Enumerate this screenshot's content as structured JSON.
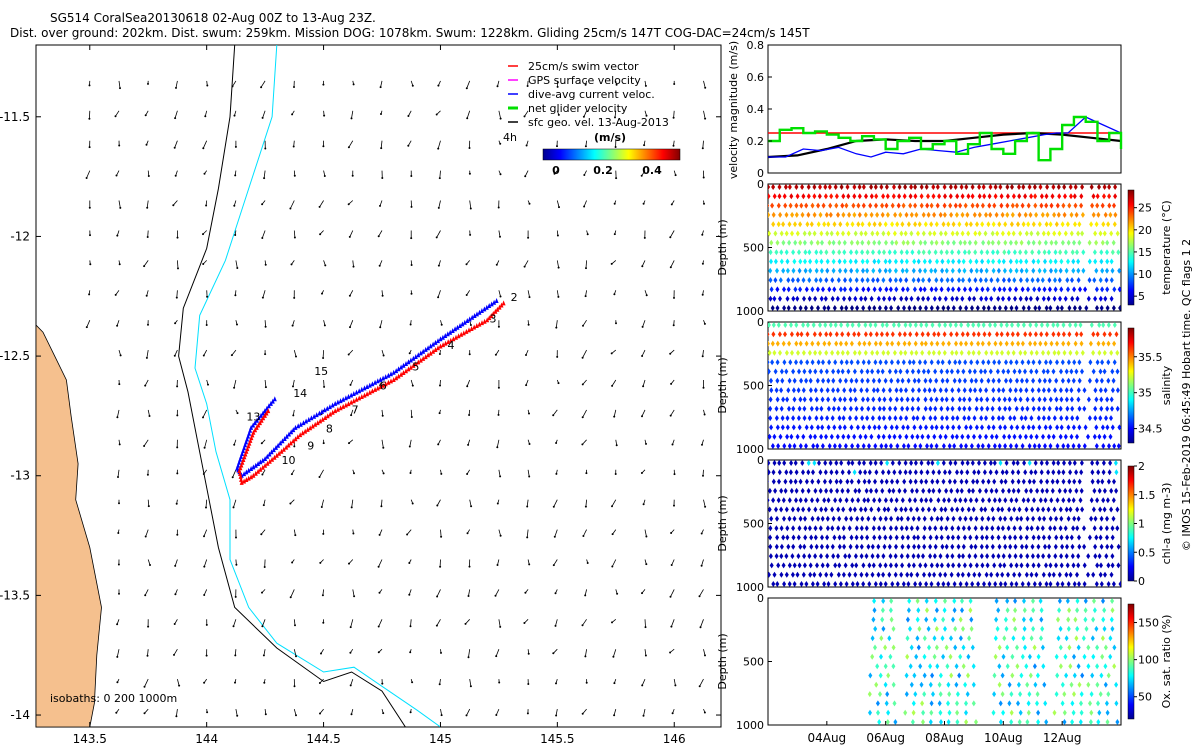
{
  "header": {
    "line1": "SG514 CoralSea20130618 02-Aug 00Z to 13-Aug 23Z.",
    "line2": "Dist. over ground: 202km. Dist. swum: 259km. Mission DOG: 1078km. Swum: 1228km. Gliding 25cm/s 147T COG-DAC=24cm/s 145T"
  },
  "side_note": "© IMOS 15-Feb-2019 06:45:49 Hobart time. QC flags 1  2",
  "colors": {
    "land": "#f5c08e",
    "swim": "#ff0000",
    "gps": "#ff00ff",
    "dac": "#0000ff",
    "net": "#00e000",
    "geo": "#000000",
    "iso1": "#00e0ff",
    "iso2": "#000000"
  },
  "chart_data": [
    {
      "id": "map",
      "type": "scatter",
      "title": "",
      "xlim": [
        143.27,
        146.2
      ],
      "ylim": [
        -14.05,
        -11.2
      ],
      "xticks": [
        143.5,
        144,
        144.5,
        145,
        145.5,
        146
      ],
      "xtick_labels": [
        "143.5",
        "144",
        "144.5",
        "145",
        "145.5",
        "146"
      ],
      "yticks": [
        -11.5,
        -12,
        -12.5,
        -13,
        -13.5,
        -14
      ],
      "ytick_labels": [
        "-11.5",
        "-12",
        "-12.5",
        "-13",
        "-13.5",
        "-14"
      ],
      "legend": {
        "entries": [
          "25cm/s swim vector",
          "GPS surface velocity",
          "dive-avg current veloc.",
          "net glider velocity",
          "sfc geo. vel. 13-Aug-2013"
        ],
        "extra": "4h"
      },
      "colorbar": {
        "label": "(m/s)",
        "ticks": [
          "0",
          "0.2",
          "0.4"
        ],
        "range": [
          0,
          0.5
        ]
      },
      "track": [
        {
          "lon": 145.27,
          "lat": -12.28
        },
        {
          "lon": 145.2,
          "lat": -12.35
        },
        {
          "lon": 145.0,
          "lat": -12.46
        },
        {
          "lon": 144.8,
          "lat": -12.6
        },
        {
          "lon": 144.55,
          "lat": -12.73
        },
        {
          "lon": 144.4,
          "lat": -12.83
        },
        {
          "lon": 144.32,
          "lat": -12.9
        },
        {
          "lon": 144.2,
          "lat": -13.0
        },
        {
          "lon": 144.15,
          "lat": -13.03
        },
        {
          "lon": 144.14,
          "lat": -12.98
        },
        {
          "lon": 144.2,
          "lat": -12.82
        },
        {
          "lon": 144.27,
          "lat": -12.72
        }
      ],
      "track_blue": [
        {
          "lon": 145.24,
          "lat": -12.27
        },
        {
          "lon": 145.0,
          "lat": -12.43
        },
        {
          "lon": 144.8,
          "lat": -12.57
        },
        {
          "lon": 144.55,
          "lat": -12.7
        },
        {
          "lon": 144.38,
          "lat": -12.8
        },
        {
          "lon": 144.25,
          "lat": -12.93
        },
        {
          "lon": 144.15,
          "lat": -13.0
        },
        {
          "lon": 144.13,
          "lat": -12.97
        },
        {
          "lon": 144.19,
          "lat": -12.8
        },
        {
          "lon": 144.3,
          "lat": -12.67
        }
      ],
      "day_labels": [
        {
          "t": "2",
          "lon": 145.3,
          "lat": -12.27
        },
        {
          "t": "3",
          "lon": 145.21,
          "lat": -12.36
        },
        {
          "t": "4",
          "lon": 145.03,
          "lat": -12.47
        },
        {
          "t": "5",
          "lon": 144.88,
          "lat": -12.56
        },
        {
          "t": "6",
          "lon": 144.74,
          "lat": -12.64
        },
        {
          "t": "7",
          "lon": 144.62,
          "lat": -12.74
        },
        {
          "t": "8",
          "lon": 144.51,
          "lat": -12.82
        },
        {
          "t": "9",
          "lon": 144.43,
          "lat": -12.89
        },
        {
          "t": "10",
          "lon": 144.32,
          "lat": -12.95
        },
        {
          "t": "13",
          "lon": 144.17,
          "lat": -12.77
        },
        {
          "t": "14",
          "lon": 144.37,
          "lat": -12.67
        },
        {
          "t": "15",
          "lon": 144.46,
          "lat": -12.58
        }
      ],
      "isobath_label": "isobaths: 0   200  1000m",
      "isobath_cyan": [
        {
          "lon": 144.3,
          "lat": -11.2
        },
        {
          "lon": 144.28,
          "lat": -11.5
        },
        {
          "lon": 144.18,
          "lat": -11.8
        },
        {
          "lon": 144.08,
          "lat": -12.1
        },
        {
          "lon": 143.97,
          "lat": -12.33
        },
        {
          "lon": 143.95,
          "lat": -12.55
        },
        {
          "lon": 144.0,
          "lat": -12.7
        },
        {
          "lon": 144.04,
          "lat": -12.9
        },
        {
          "lon": 144.1,
          "lat": -13.1
        },
        {
          "lon": 144.1,
          "lat": -13.35
        },
        {
          "lon": 144.18,
          "lat": -13.55
        },
        {
          "lon": 144.3,
          "lat": -13.7
        },
        {
          "lon": 144.5,
          "lat": -13.82
        },
        {
          "lon": 144.63,
          "lat": -13.8
        },
        {
          "lon": 144.75,
          "lat": -13.88
        },
        {
          "lon": 144.9,
          "lat": -13.98
        },
        {
          "lon": 145.0,
          "lat": -14.05
        }
      ],
      "isobath_black": [
        {
          "lon": 144.12,
          "lat": -11.2
        },
        {
          "lon": 144.1,
          "lat": -11.5
        },
        {
          "lon": 144.05,
          "lat": -11.8
        },
        {
          "lon": 144.0,
          "lat": -12.05
        },
        {
          "lon": 143.9,
          "lat": -12.3
        },
        {
          "lon": 143.88,
          "lat": -12.5
        },
        {
          "lon": 143.92,
          "lat": -12.65
        },
        {
          "lon": 143.96,
          "lat": -12.85
        },
        {
          "lon": 144.0,
          "lat": -13.05
        },
        {
          "lon": 144.05,
          "lat": -13.3
        },
        {
          "lon": 144.12,
          "lat": -13.55
        },
        {
          "lon": 144.3,
          "lat": -13.72
        },
        {
          "lon": 144.5,
          "lat": -13.86
        },
        {
          "lon": 144.62,
          "lat": -13.82
        },
        {
          "lon": 144.75,
          "lat": -13.9
        },
        {
          "lon": 144.85,
          "lat": -14.05
        }
      ],
      "coast": [
        {
          "lon": 143.27,
          "lat": -12.37
        },
        {
          "lon": 143.3,
          "lat": -12.4
        },
        {
          "lon": 143.35,
          "lat": -12.5
        },
        {
          "lon": 143.4,
          "lat": -12.6
        },
        {
          "lon": 143.42,
          "lat": -12.75
        },
        {
          "lon": 143.45,
          "lat": -12.95
        },
        {
          "lon": 143.44,
          "lat": -13.1
        },
        {
          "lon": 143.5,
          "lat": -13.3
        },
        {
          "lon": 143.55,
          "lat": -13.55
        },
        {
          "lon": 143.53,
          "lat": -13.75
        },
        {
          "lon": 143.52,
          "lat": -13.95
        },
        {
          "lon": 143.5,
          "lat": -14.05
        }
      ]
    },
    {
      "id": "velocity",
      "type": "line",
      "ylabel": "velocity magnitude (m/s)",
      "xlim": [
        2,
        14
      ],
      "ylim": [
        0,
        0.8
      ],
      "yticks": [
        0,
        0.2,
        0.4,
        0.6,
        0.8
      ],
      "ytick_labels": [
        "0",
        "0.2",
        "0.4",
        "0.6",
        "0.8"
      ],
      "series": [
        {
          "name": "25cm/s swim vector",
          "x": [
            2,
            14
          ],
          "values": [
            0.25,
            0.25
          ]
        },
        {
          "name": "sfc geo. vel.",
          "x": [
            2,
            3,
            4,
            5,
            6,
            7,
            8,
            9,
            10,
            11,
            12,
            13,
            14
          ],
          "values": [
            0.1,
            0.11,
            0.15,
            0.2,
            0.21,
            0.2,
            0.2,
            0.22,
            0.24,
            0.25,
            0.24,
            0.22,
            0.2
          ]
        },
        {
          "name": "dive-avg current veloc.",
          "x": [
            2,
            2.6,
            3.2,
            3.8,
            4.4,
            5.0,
            5.5,
            6.0,
            6.6,
            7.2,
            7.8,
            8.4,
            9.0,
            9.6,
            10.2,
            10.8,
            11.4,
            11.8,
            12.2,
            12.8,
            13.4,
            14
          ],
          "values": [
            0.1,
            0.1,
            0.15,
            0.14,
            0.16,
            0.12,
            0.1,
            0.13,
            0.12,
            0.15,
            0.14,
            0.13,
            0.16,
            0.18,
            0.2,
            0.22,
            0.24,
            0.25,
            0.25,
            0.35,
            0.3,
            0.25
          ]
        },
        {
          "name": "net glider velocity",
          "x": [
            2,
            2.4,
            2.8,
            3.2,
            3.6,
            4.0,
            4.4,
            4.8,
            5.2,
            5.6,
            6.0,
            6.4,
            6.8,
            7.2,
            7.6,
            8.0,
            8.4,
            8.8,
            9.2,
            9.6,
            10.0,
            10.4,
            10.8,
            11.2,
            11.6,
            12.0,
            12.4,
            12.8,
            13.2,
            13.6,
            14
          ],
          "values": [
            0.2,
            0.27,
            0.28,
            0.25,
            0.26,
            0.24,
            0.22,
            0.2,
            0.23,
            0.21,
            0.15,
            0.2,
            0.22,
            0.15,
            0.18,
            0.2,
            0.12,
            0.18,
            0.25,
            0.15,
            0.12,
            0.2,
            0.25,
            0.08,
            0.15,
            0.3,
            0.35,
            0.32,
            0.2,
            0.25,
            0.15
          ]
        }
      ]
    },
    {
      "id": "temperature",
      "type": "heatmap",
      "ylabel": "Depth (m)",
      "cbar_label": "temperature (°C)",
      "ylim": [
        0,
        1000
      ],
      "yticks": [
        0,
        500,
        1000
      ],
      "cbar_ticks": [
        5,
        10,
        15,
        20,
        25
      ],
      "cbar_range": [
        3,
        29
      ]
    },
    {
      "id": "salinity",
      "type": "heatmap",
      "ylabel": "Depth (m)",
      "cbar_label": "salinity",
      "ylim": [
        0,
        1000
      ],
      "yticks": [
        0,
        500,
        1000
      ],
      "cbar_ticks": [
        34.5,
        35,
        35.5
      ],
      "cbar_range": [
        34.3,
        35.9
      ]
    },
    {
      "id": "chla",
      "type": "heatmap",
      "ylabel": "Depth (m)",
      "cbar_label": "chl-a (mg m-3)",
      "ylim": [
        0,
        1000
      ],
      "yticks": [
        0,
        500,
        1000
      ],
      "cbar_ticks": [
        0,
        0.5,
        1,
        1.5,
        2
      ],
      "cbar_range": [
        0,
        2
      ]
    },
    {
      "id": "oxygen",
      "type": "heatmap",
      "ylabel": "Depth (m)",
      "cbar_label": "Ox. sat. ratio (%)",
      "ylim": [
        0,
        1000
      ],
      "yticks": [
        0,
        500,
        1000
      ],
      "cbar_ticks": [
        50,
        100,
        150
      ],
      "cbar_range": [
        20,
        175
      ],
      "xticks": [
        "04Aug",
        "06Aug",
        "08Aug",
        "10Aug",
        "12Aug"
      ],
      "xtick_values": [
        4,
        6,
        8,
        10,
        12
      ],
      "xlim": [
        2,
        14
      ]
    }
  ]
}
